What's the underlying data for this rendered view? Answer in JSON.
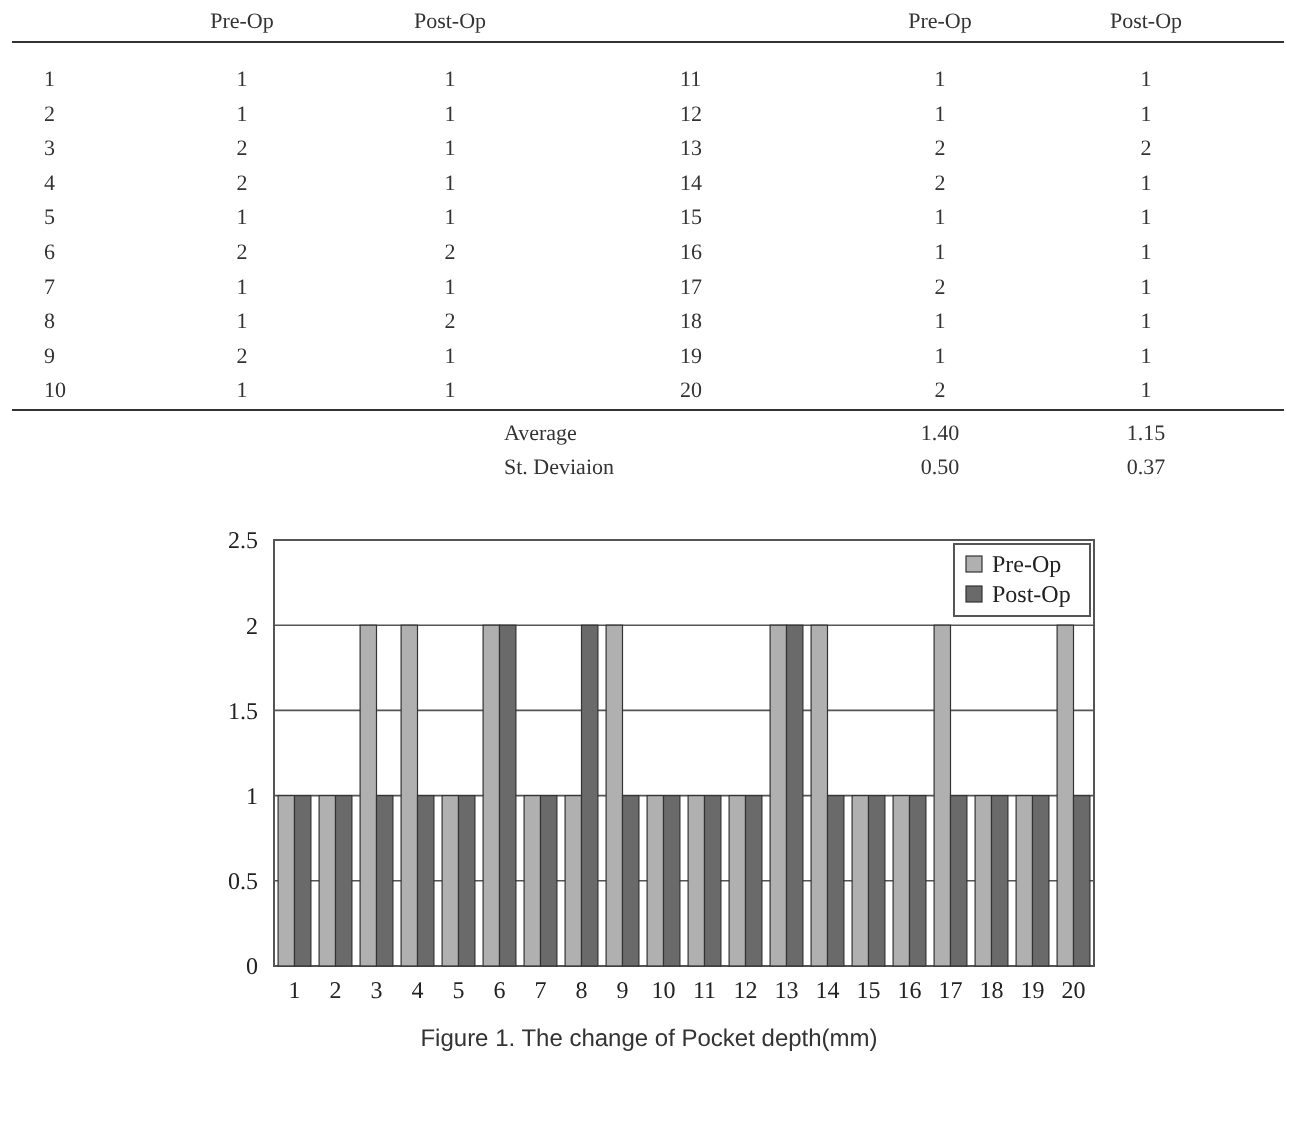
{
  "chart_data": {
    "type": "bar",
    "title": "Figure 1. The change of Pocket depth(mm)",
    "categories": [
      "1",
      "2",
      "3",
      "4",
      "5",
      "6",
      "7",
      "8",
      "9",
      "10",
      "11",
      "12",
      "13",
      "14",
      "15",
      "16",
      "17",
      "18",
      "19",
      "20"
    ],
    "series": [
      {
        "name": "Pre-Op",
        "color": "#b0b0b0",
        "values": [
          1,
          1,
          2,
          2,
          1,
          2,
          1,
          1,
          2,
          1,
          1,
          1,
          2,
          2,
          1,
          1,
          2,
          1,
          1,
          2
        ]
      },
      {
        "name": "Post-Op",
        "color": "#6a6a6a",
        "values": [
          1,
          1,
          1,
          1,
          1,
          2,
          1,
          2,
          1,
          1,
          1,
          1,
          2,
          1,
          1,
          1,
          1,
          1,
          1,
          1
        ]
      }
    ],
    "ylim": [
      0,
      2.5
    ],
    "yticks": [
      0,
      0.5,
      1,
      1.5,
      2,
      2.5
    ],
    "grid": "y",
    "legend": "top right",
    "annotations": [
      "Average",
      "1.40",
      "1.15",
      "St. Deviaion",
      "0.50",
      "0.37"
    ]
  }
}
